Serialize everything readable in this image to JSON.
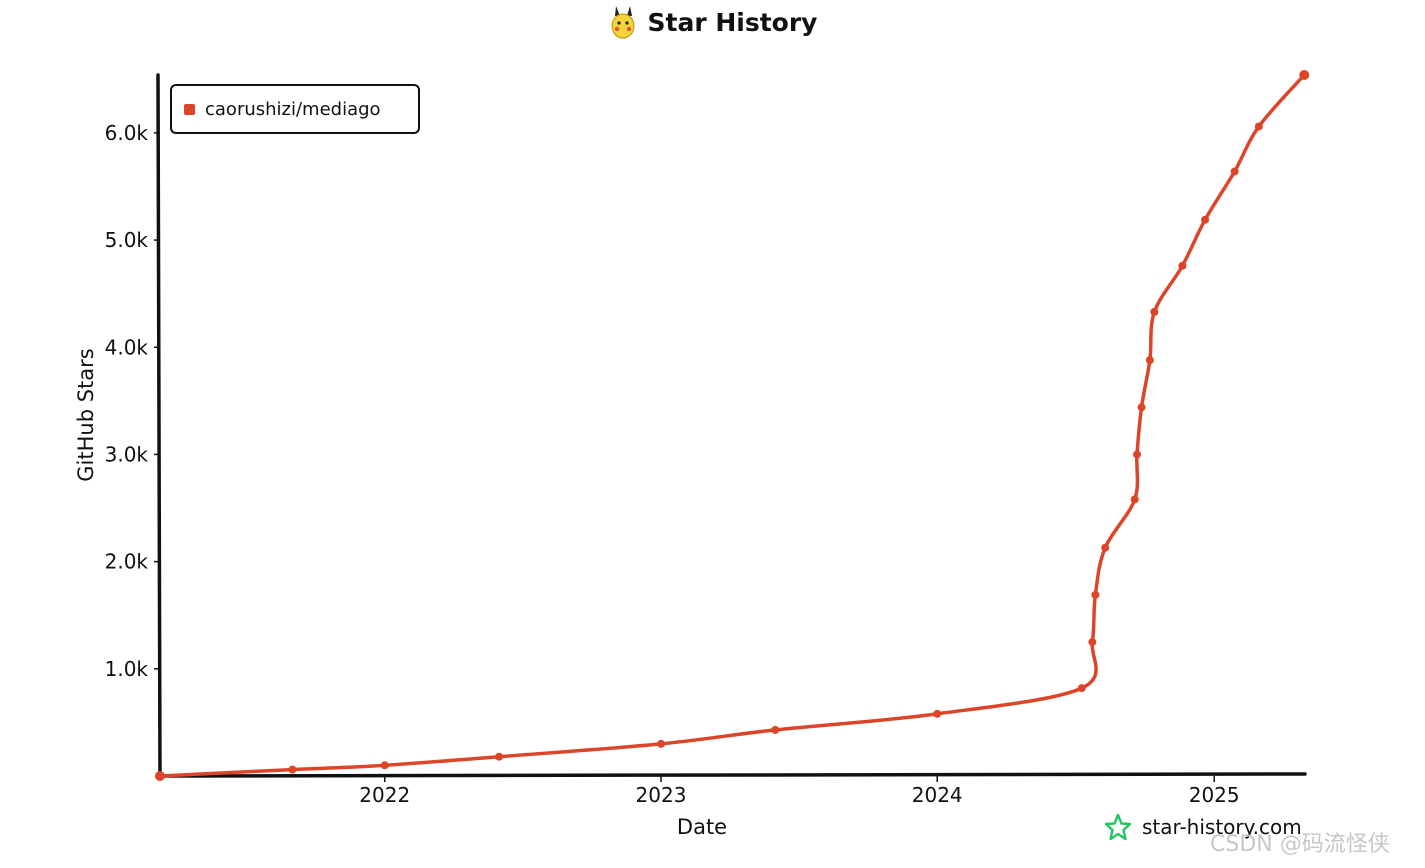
{
  "chart_data": {
    "type": "line",
    "title": "Star History",
    "xlabel": "Date",
    "ylabel": "GitHub Stars",
    "xlim": [
      "2021-03-10",
      "2025-05-01"
    ],
    "ylim": [
      0,
      6540
    ],
    "x_ticks": [
      {
        "date": "2022-01-01",
        "label": "2022"
      },
      {
        "date": "2023-01-01",
        "label": "2023"
      },
      {
        "date": "2024-01-01",
        "label": "2024"
      },
      {
        "date": "2025-01-01",
        "label": "2025"
      }
    ],
    "y_ticks": [
      {
        "value": 1000,
        "label": "1.0k"
      },
      {
        "value": 2000,
        "label": "2.0k"
      },
      {
        "value": 3000,
        "label": "3.0k"
      },
      {
        "value": 4000,
        "label": "4.0k"
      },
      {
        "value": 5000,
        "label": "5.0k"
      },
      {
        "value": 6000,
        "label": "6.0k"
      }
    ],
    "legend_position": "top-left",
    "grid": false,
    "series": [
      {
        "name": "caorushizi/mediago",
        "color": "#dd4528",
        "points": [
          {
            "x": "2021-03-10",
            "y": 0
          },
          {
            "x": "2021-09-01",
            "y": 60
          },
          {
            "x": "2022-01-01",
            "y": 100
          },
          {
            "x": "2022-06-01",
            "y": 180
          },
          {
            "x": "2023-01-01",
            "y": 300
          },
          {
            "x": "2023-06-01",
            "y": 430
          },
          {
            "x": "2024-01-01",
            "y": 580
          },
          {
            "x": "2024-07-10",
            "y": 820
          },
          {
            "x": "2024-07-24",
            "y": 1250
          },
          {
            "x": "2024-07-28",
            "y": 1690
          },
          {
            "x": "2024-08-10",
            "y": 2130
          },
          {
            "x": "2024-09-18",
            "y": 2580
          },
          {
            "x": "2024-09-21",
            "y": 3000
          },
          {
            "x": "2024-09-27",
            "y": 3440
          },
          {
            "x": "2024-10-08",
            "y": 3880
          },
          {
            "x": "2024-10-14",
            "y": 4330
          },
          {
            "x": "2024-11-20",
            "y": 4760
          },
          {
            "x": "2024-12-20",
            "y": 5190
          },
          {
            "x": "2025-01-28",
            "y": 5640
          },
          {
            "x": "2025-03-01",
            "y": 6060
          },
          {
            "x": "2025-04-30",
            "y": 6540
          }
        ]
      }
    ]
  },
  "legend": {
    "label": "caorushizi/mediago",
    "color": "#dd4528"
  },
  "brand": {
    "text": "star-history.com",
    "icon": "star-outline-icon",
    "color": "#22c55e"
  },
  "watermark": {
    "text": "CSDN @码流怪侠"
  }
}
